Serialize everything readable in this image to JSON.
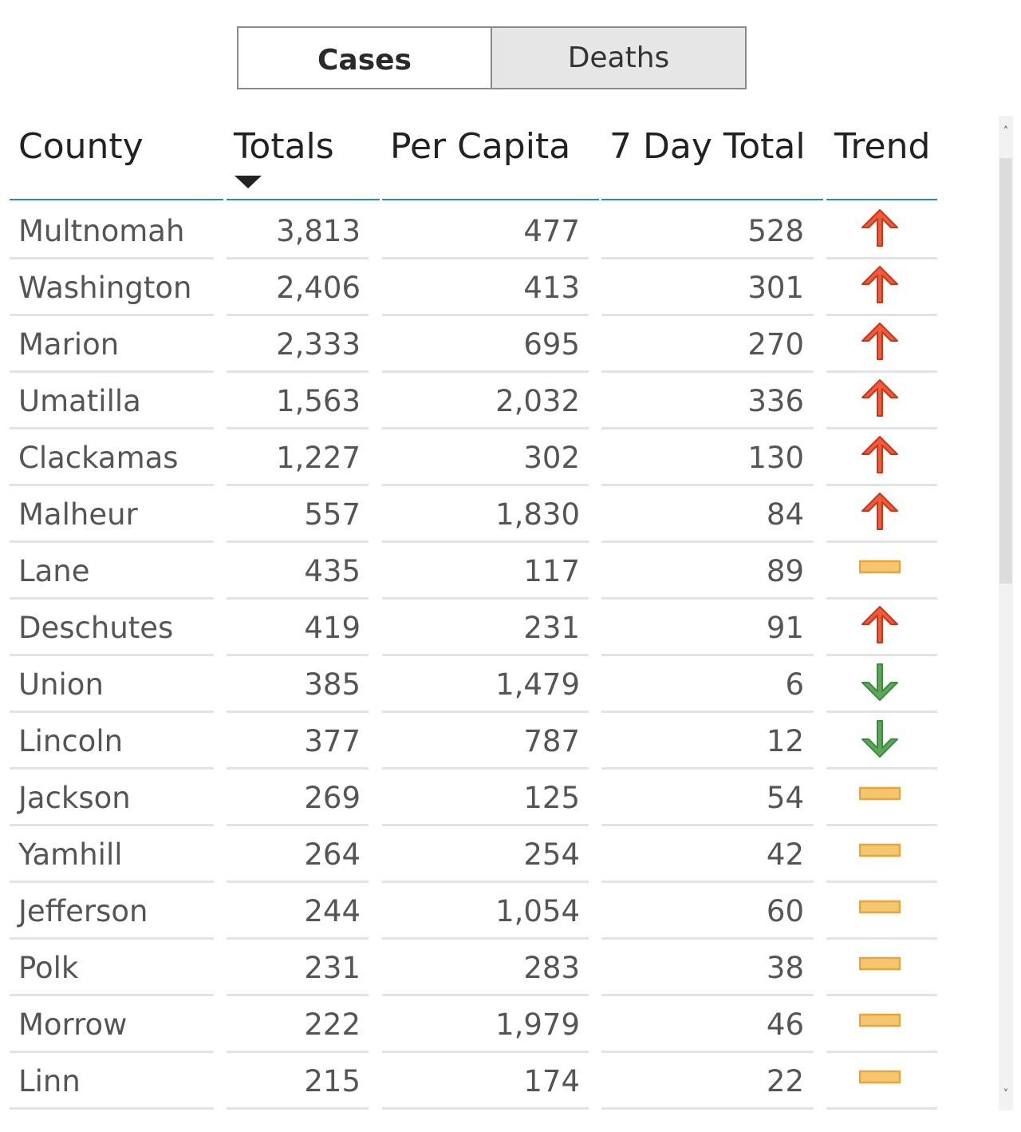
{
  "tabs": {
    "cases_label": "Cases",
    "deaths_label": "Deaths",
    "active": "Cases"
  },
  "columns": {
    "county": "County",
    "totals": "Totals",
    "per_capita": "Per Capita",
    "seven_day": "7 Day Total",
    "trend": "Trend"
  },
  "sort": {
    "column": "Totals",
    "direction": "descending"
  },
  "colors": {
    "trend_up": "#ef5b3a",
    "trend_down": "#5aa85a",
    "trend_flat": "#f6c66e",
    "header_rule": "#2b86c9"
  },
  "rows": [
    {
      "county": "Multnomah",
      "totals": "3,813",
      "per_capita": "477",
      "seven_day": "528",
      "trend": "up"
    },
    {
      "county": "Washington",
      "totals": "2,406",
      "per_capita": "413",
      "seven_day": "301",
      "trend": "up"
    },
    {
      "county": "Marion",
      "totals": "2,333",
      "per_capita": "695",
      "seven_day": "270",
      "trend": "up"
    },
    {
      "county": "Umatilla",
      "totals": "1,563",
      "per_capita": "2,032",
      "seven_day": "336",
      "trend": "up"
    },
    {
      "county": "Clackamas",
      "totals": "1,227",
      "per_capita": "302",
      "seven_day": "130",
      "trend": "up"
    },
    {
      "county": "Malheur",
      "totals": "557",
      "per_capita": "1,830",
      "seven_day": "84",
      "trend": "up"
    },
    {
      "county": "Lane",
      "totals": "435",
      "per_capita": "117",
      "seven_day": "89",
      "trend": "flat"
    },
    {
      "county": "Deschutes",
      "totals": "419",
      "per_capita": "231",
      "seven_day": "91",
      "trend": "up"
    },
    {
      "county": "Union",
      "totals": "385",
      "per_capita": "1,479",
      "seven_day": "6",
      "trend": "down"
    },
    {
      "county": "Lincoln",
      "totals": "377",
      "per_capita": "787",
      "seven_day": "12",
      "trend": "down"
    },
    {
      "county": "Jackson",
      "totals": "269",
      "per_capita": "125",
      "seven_day": "54",
      "trend": "flat"
    },
    {
      "county": "Yamhill",
      "totals": "264",
      "per_capita": "254",
      "seven_day": "42",
      "trend": "flat"
    },
    {
      "county": "Jefferson",
      "totals": "244",
      "per_capita": "1,054",
      "seven_day": "60",
      "trend": "flat"
    },
    {
      "county": "Polk",
      "totals": "231",
      "per_capita": "283",
      "seven_day": "38",
      "trend": "flat"
    },
    {
      "county": "Morrow",
      "totals": "222",
      "per_capita": "1,979",
      "seven_day": "46",
      "trend": "flat"
    },
    {
      "county": "Linn",
      "totals": "215",
      "per_capita": "174",
      "seven_day": "22",
      "trend": "flat"
    }
  ],
  "scrollbar": {
    "up_glyph": "˄",
    "down_glyph": "˅"
  }
}
